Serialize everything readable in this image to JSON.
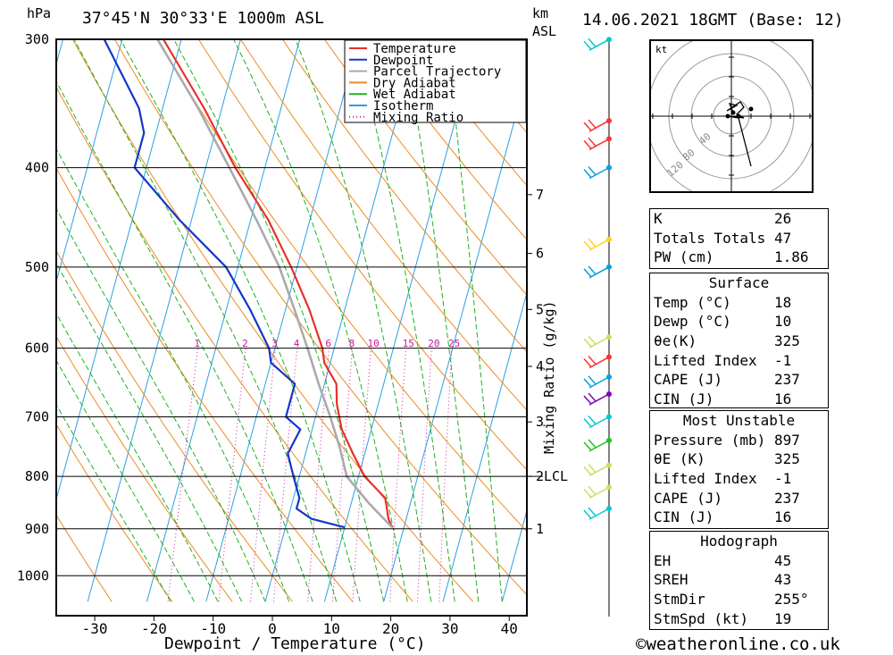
{
  "header": {
    "unit_hpa": "hPa",
    "location": "37°45'N  30°33'E  1000m  ASL",
    "km": "km",
    "asl": "ASL",
    "datetime": "14.06.2021  18GMT  (Base: 12)"
  },
  "footer": {
    "copyright": "©weatheronline.co.uk"
  },
  "chart_data": {
    "type": "line",
    "title": "37°45'N  30°33'E  1000m  ASL",
    "xlabel": "Dewpoint / Temperature (°C)",
    "ylabel": "hPa",
    "xlim": [
      -35,
      45
    ],
    "ylim": [
      1050,
      300
    ],
    "y_scale": "log",
    "skew": true,
    "x_ticks": [
      -30,
      -20,
      -10,
      0,
      10,
      20,
      30,
      40
    ],
    "pressure_levels": [
      300,
      400,
      500,
      600,
      700,
      800,
      900,
      1000
    ],
    "legend": [
      "Temperature",
      "Dewpoint",
      "Parcel Trajectory",
      "Dry Adiabat",
      "Wet Adiabat",
      "Isotherm",
      "Mixing Ratio"
    ],
    "legend_placement": "top-right",
    "mixing_ratio_axis_label": "Mixing Ratio (g/kg)",
    "mixing_ratio_labels": [
      "1",
      "2",
      "3",
      "4",
      "6",
      "8",
      "10",
      "15",
      "20",
      "25"
    ],
    "height_labels": [
      {
        "km": "1",
        "p": 900
      },
      {
        "km": "2",
        "p": 800
      },
      {
        "km": "3",
        "p": 708
      },
      {
        "km": "4",
        "p": 625
      },
      {
        "km": "5",
        "p": 550
      },
      {
        "km": "6",
        "p": 485
      },
      {
        "km": "7",
        "p": 425
      }
    ],
    "lcl_label": "LCL",
    "lcl_p": 800,
    "series": [
      {
        "name": "Temperature",
        "color": "#e8302a",
        "p": [
          897,
          880,
          840,
          800,
          760,
          720,
          700,
          680,
          650,
          620,
          600,
          550,
          500,
          450,
          400,
          350,
          300
        ],
        "t": [
          18,
          17,
          15.5,
          11,
          8,
          5,
          4,
          3,
          2,
          -1,
          -2,
          -6,
          -11,
          -17,
          -25,
          -33,
          -43
        ]
      },
      {
        "name": "Dewpoint",
        "color": "#1436c8",
        "p": [
          897,
          880,
          860,
          840,
          800,
          760,
          720,
          700,
          680,
          650,
          620,
          600,
          550,
          500,
          450,
          400,
          370,
          350,
          300
        ],
        "t": [
          10,
          4,
          1,
          1,
          -1,
          -3,
          -2,
          -5,
          -5,
          -5,
          -10,
          -11,
          -16,
          -22,
          -32,
          -42,
          -42,
          -44,
          -53
        ]
      },
      {
        "name": "Parcel Trajectory",
        "color": "#aaaaaa",
        "p": [
          897,
          850,
          800,
          750,
          700,
          650,
          600,
          550,
          500,
          450,
          400,
          350,
          300
        ],
        "t": [
          18,
          13,
          8,
          5.5,
          2.5,
          -1,
          -4.5,
          -8.5,
          -13,
          -19,
          -26,
          -34,
          -44
        ]
      }
    ]
  },
  "wind_barbs": {
    "label": "wind profile",
    "colors": [
      "#00c8d0",
      "#ff3030",
      "#ff3030",
      "#00a0e0",
      "#ffd020",
      "#00a0e0",
      "#c8e060",
      "#ff3030",
      "#00a0e0",
      "#8000c0",
      "#00c8d0",
      "#20c020",
      "#c8e060",
      "#c8e060",
      "#00c8d0"
    ]
  },
  "hodograph": {
    "unit": "kt",
    "ring_labels": [
      "40",
      "80",
      "120"
    ]
  },
  "indices": {
    "top": [
      {
        "label": "K",
        "value": "26"
      },
      {
        "label": "Totals Totals",
        "value": "47"
      },
      {
        "label": "PW (cm)",
        "value": "1.86"
      }
    ],
    "surface": {
      "title": "Surface",
      "rows": [
        {
          "label": "Temp (°C)",
          "value": "18"
        },
        {
          "label": "Dewp (°C)",
          "value": "10"
        },
        {
          "label": "θe(K)",
          "value": "325"
        },
        {
          "label": "Lifted Index",
          "value": "-1"
        },
        {
          "label": "CAPE (J)",
          "value": "237"
        },
        {
          "label": "CIN (J)",
          "value": "16"
        }
      ]
    },
    "most_unstable": {
      "title": "Most Unstable",
      "rows": [
        {
          "label": "Pressure (mb)",
          "value": "897"
        },
        {
          "label": "θE (K)",
          "value": "325"
        },
        {
          "label": "Lifted Index",
          "value": "-1"
        },
        {
          "label": "CAPE (J)",
          "value": "237"
        },
        {
          "label": "CIN (J)",
          "value": "16"
        }
      ]
    },
    "hodograph_box": {
      "title": "Hodograph",
      "rows": [
        {
          "label": "EH",
          "value": "45"
        },
        {
          "label": "SREH",
          "value": "43"
        },
        {
          "label": "StmDir",
          "value": "255°"
        },
        {
          "label": "StmSpd (kt)",
          "value": "19"
        }
      ]
    }
  }
}
